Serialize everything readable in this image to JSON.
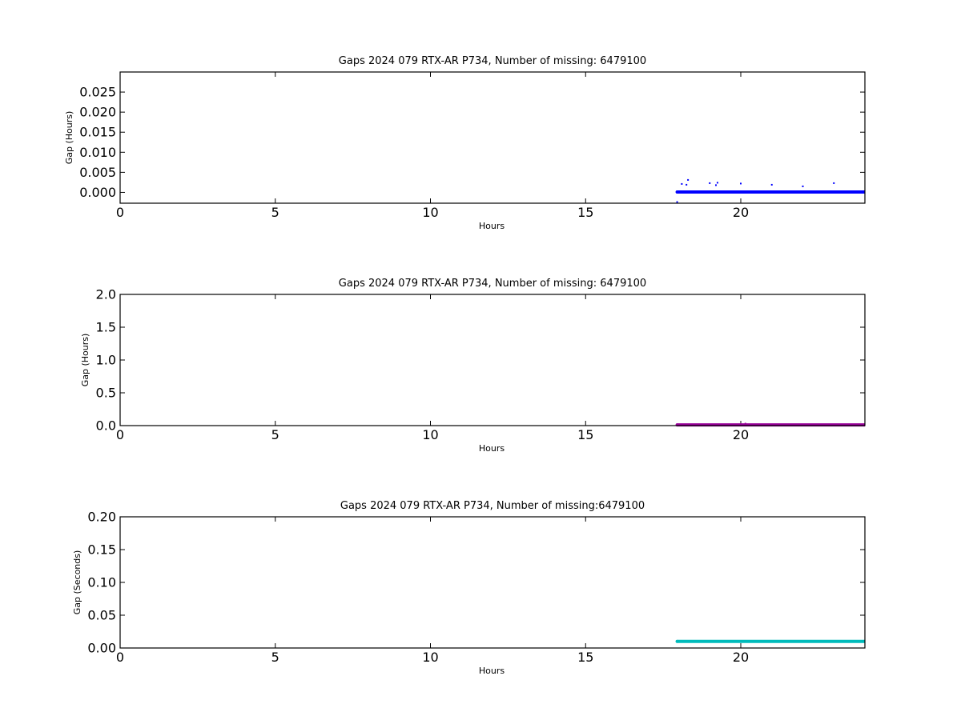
{
  "chart_data": [
    {
      "type": "scatter",
      "title": "Gaps 2024 079 RTX-AR  P734, Number of missing: 6479100",
      "xlabel": "Hours",
      "ylabel": "Gap (Hours)",
      "xlim": [
        0,
        24
      ],
      "ylim": [
        -0.0027,
        0.03
      ],
      "xticks": [
        0,
        5,
        10,
        15,
        20
      ],
      "xtick_labels": [
        "0",
        "5",
        "10",
        "15",
        "20"
      ],
      "yticks": [
        0.0,
        0.005,
        0.01,
        0.015,
        0.02,
        0.025
      ],
      "ytick_labels": [
        "0.000",
        "0.005",
        "0.010",
        "0.015",
        "0.020",
        "0.025"
      ],
      "grid": false,
      "color": "#0000ff",
      "band": {
        "x_start": 17.95,
        "x_end": 24,
        "y": 0.0001
      },
      "series": [
        {
          "x": [
            17.95,
            18.1,
            18.25,
            18.3,
            19.0,
            19.2,
            19.25,
            20.0,
            21.0,
            22.0,
            23.0,
            17.95
          ],
          "y": [
            0.0,
            0.0021,
            0.0019,
            0.0031,
            0.0023,
            0.0018,
            0.0024,
            0.0022,
            0.0019,
            0.0015,
            0.0023,
            -0.0024
          ]
        }
      ]
    },
    {
      "type": "scatter",
      "title": "Gaps 2024 079 RTX-AR  P734, Number of missing: 6479100",
      "xlabel": "Hours",
      "ylabel": "Gap (Hours)",
      "xlim": [
        0,
        24
      ],
      "ylim": [
        0,
        2.0
      ],
      "xticks": [
        0,
        5,
        10,
        15,
        20
      ],
      "xtick_labels": [
        "0",
        "5",
        "10",
        "15",
        "20"
      ],
      "yticks": [
        0.0,
        0.5,
        1.0,
        1.5,
        2.0
      ],
      "ytick_labels": [
        "0.0",
        "0.5",
        "1.0",
        "1.5",
        "2.0"
      ],
      "grid": false,
      "color": "#990099",
      "band": {
        "x_start": 17.95,
        "x_end": 24,
        "y": 0.01
      },
      "series": [
        {
          "x": [
            17.95,
            20.0,
            20.15
          ],
          "y": [
            0.01,
            0.02,
            0.03
          ]
        }
      ]
    },
    {
      "type": "scatter",
      "title": "Gaps 2024 079 RTX-AR  P734, Number of missing:6479100",
      "xlabel": "Hours",
      "ylabel": "Gap (Seconds)",
      "xlim": [
        0,
        24
      ],
      "ylim": [
        0,
        0.2
      ],
      "xticks": [
        0,
        5,
        10,
        15,
        20
      ],
      "xtick_labels": [
        "0",
        "5",
        "10",
        "15",
        "20"
      ],
      "yticks": [
        0.0,
        0.05,
        0.1,
        0.15,
        0.2
      ],
      "ytick_labels": [
        "0.00",
        "0.05",
        "0.10",
        "0.15",
        "0.20"
      ],
      "grid": false,
      "color": "#00bbbb",
      "band": {
        "x_start": 17.95,
        "x_end": 24,
        "y": 0.01
      },
      "series": [
        {
          "x": [
            17.95
          ],
          "y": [
            0.01
          ]
        }
      ]
    }
  ]
}
